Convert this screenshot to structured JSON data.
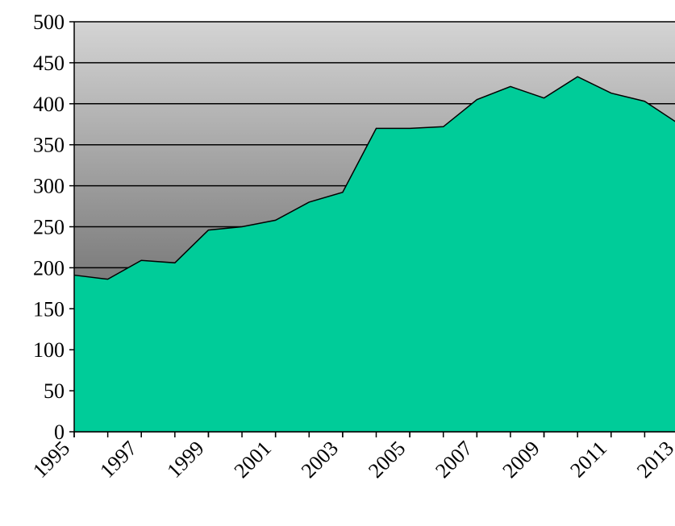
{
  "chart_data": {
    "type": "area",
    "x": [
      1995,
      1996,
      1997,
      1998,
      1999,
      2000,
      2001,
      2002,
      2003,
      2004,
      2005,
      2006,
      2007,
      2008,
      2009,
      2010,
      2011,
      2012,
      2013
    ],
    "series": [
      {
        "color": "#00cc99",
        "values": [
          191,
          186,
          209,
          206,
          246,
          250,
          258,
          280,
          292,
          370,
          370,
          372,
          405,
          421,
          407,
          433,
          413,
          403,
          376
        ]
      }
    ],
    "xlim": [
      1995,
      2013
    ],
    "xticks": [
      1995,
      1997,
      1999,
      2001,
      2003,
      2005,
      2007,
      2009,
      2011,
      2013
    ],
    "ylim": [
      0,
      500
    ],
    "yticks": [
      0,
      50,
      100,
      150,
      200,
      250,
      300,
      350,
      400,
      450,
      500
    ],
    "grid": true
  }
}
